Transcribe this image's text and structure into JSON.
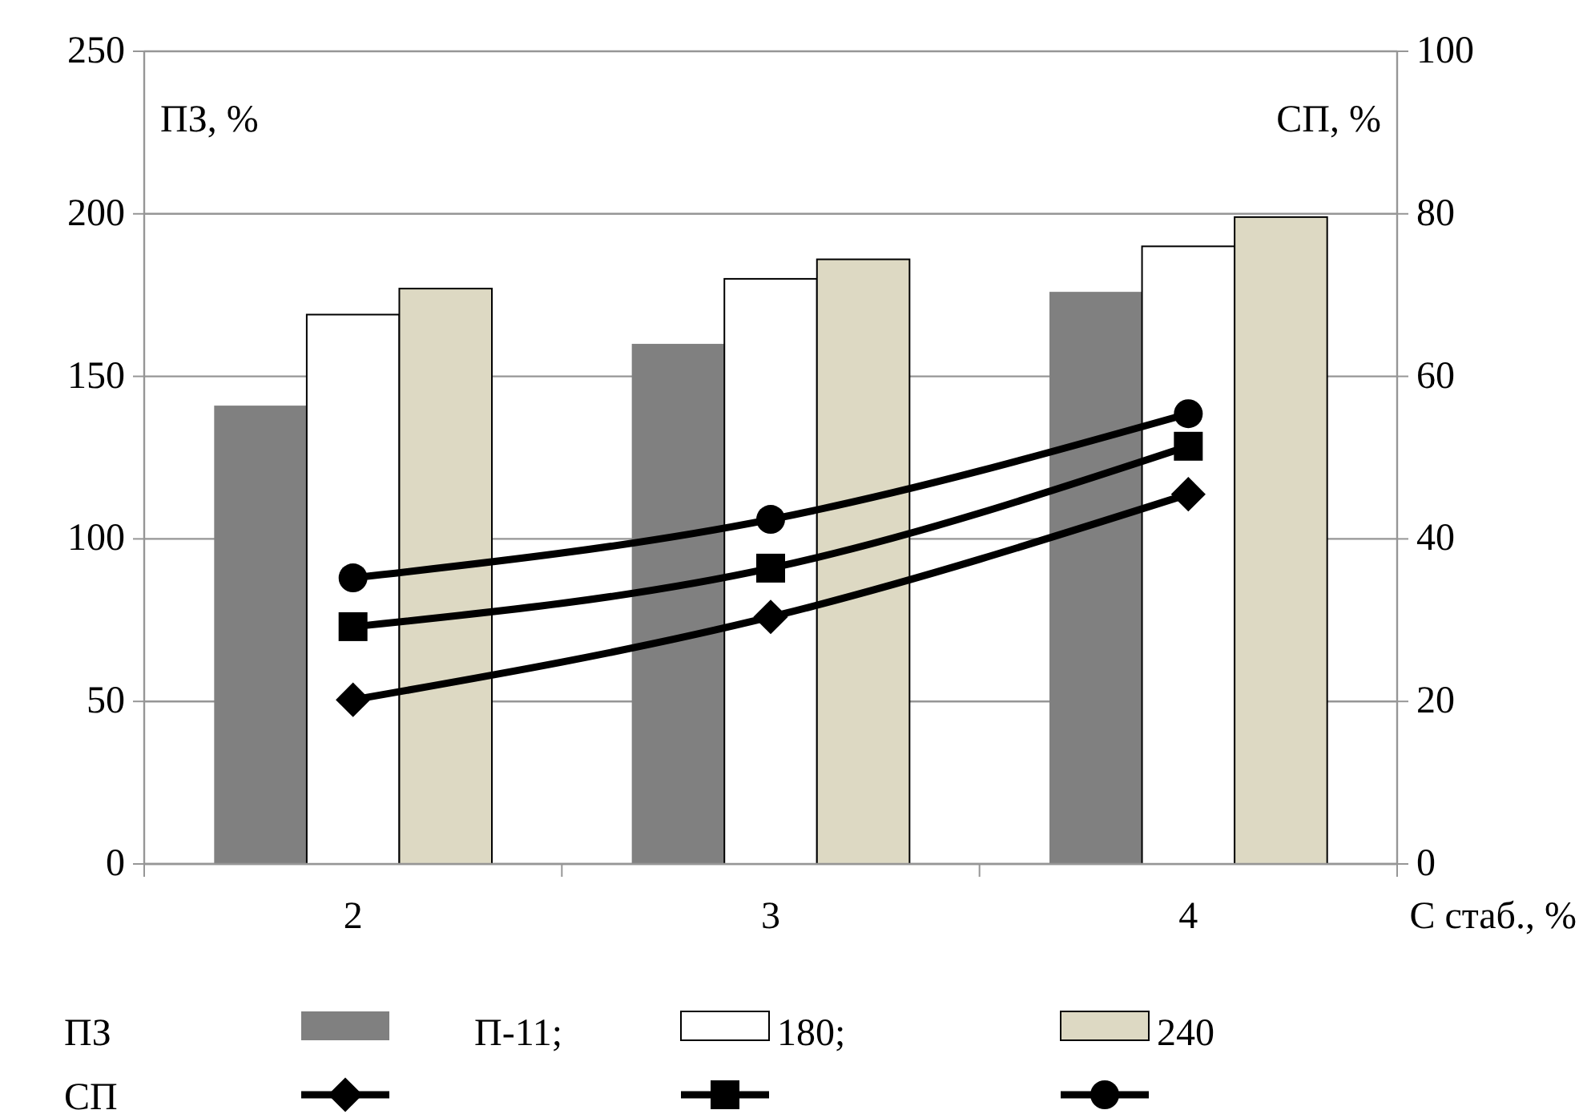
{
  "chart_data": {
    "type": "bar",
    "categories": [
      "2",
      "3",
      "4"
    ],
    "xlabel": "С стаб., %",
    "ylabel": "ПЗ, %",
    "y2label": "СП, %",
    "ylim": [
      0,
      250
    ],
    "yticks": [
      0,
      50,
      100,
      150,
      200,
      250
    ],
    "y2lim": [
      0,
      100
    ],
    "y2ticks": [
      0,
      20,
      40,
      60,
      80,
      100
    ],
    "grid": "y",
    "legend": "bottom",
    "annotations": [
      "ПЗ",
      "СП"
    ],
    "series": [
      {
        "name": "П-11;",
        "color": "#808080",
        "values": [
          141,
          160,
          176
        ]
      },
      {
        "name": "180;",
        "color": "#ffffff",
        "values": [
          169,
          180,
          190
        ]
      },
      {
        "name": "240",
        "color": "#ddd9c3",
        "values": [
          177,
          186,
          199
        ]
      },
      {
        "type": "line",
        "axis": "y2",
        "color": "#000000",
        "marker": "diamond",
        "values": [
          20.2,
          30.4,
          45.5
        ]
      },
      {
        "type": "line",
        "axis": "y2",
        "color": "#000000",
        "marker": "square",
        "values": [
          29.2,
          36.4,
          51.4
        ]
      },
      {
        "type": "line",
        "axis": "y2",
        "color": "#000000",
        "marker": "circle",
        "values": [
          35.2,
          42.4,
          55.4
        ]
      }
    ]
  }
}
